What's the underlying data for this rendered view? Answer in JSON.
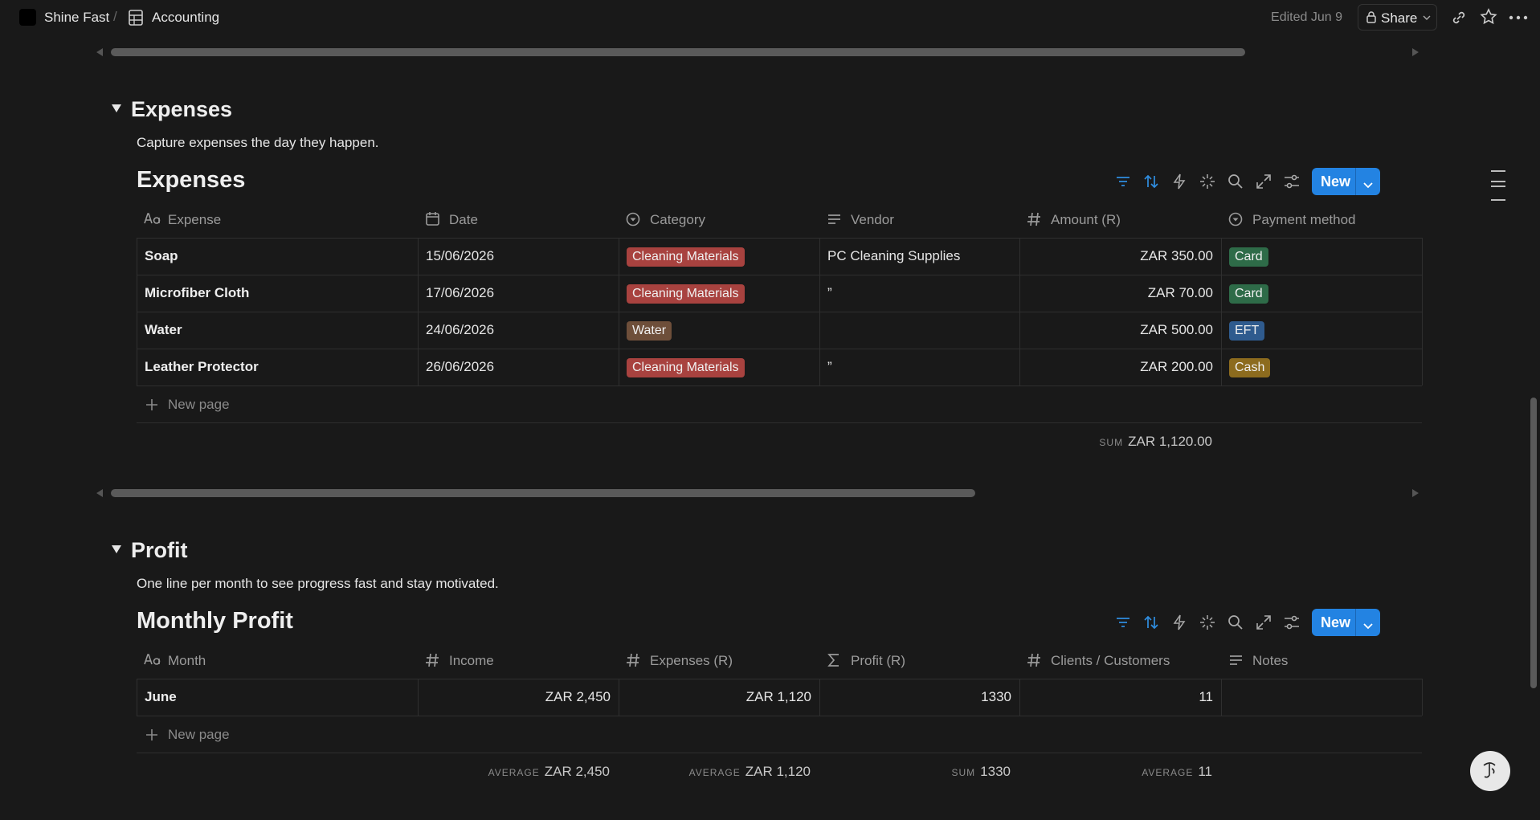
{
  "topbar": {
    "breadcrumb": [
      "Shine Fast",
      "Accounting"
    ],
    "edited": "Edited Jun 9",
    "share": "Share"
  },
  "sections": [
    {
      "heading": "Expenses",
      "description": "Capture expenses the day they happen.",
      "database": {
        "title": "Expenses",
        "new_button": "New",
        "columns": [
          "Expense",
          "Date",
          "Category",
          "Vendor",
          "Amount (R)",
          "Payment method"
        ],
        "rows": [
          [
            "Soap",
            "15/06/2026",
            {
              "text": "Cleaning Materials",
              "color": "#a8423f"
            },
            "PC Cleaning Supplies",
            "ZAR 350.00",
            {
              "text": "Card",
              "color": "#2e6b48"
            }
          ],
          [
            "Microfiber Cloth",
            "17/06/2026",
            {
              "text": "Cleaning Materials",
              "color": "#a8423f"
            },
            "”",
            "ZAR 70.00",
            {
              "text": "Card",
              "color": "#2e6b48"
            }
          ],
          [
            "Water",
            "24/06/2026",
            {
              "text": "Water",
              "color": "#6e4f3a"
            },
            null,
            "ZAR 500.00",
            {
              "text": "EFT",
              "color": "#2f5b8e"
            }
          ],
          [
            "Leather Protector",
            "26/06/2026",
            {
              "text": "Cleaning Materials",
              "color": "#a8423f"
            },
            "”",
            "ZAR 200.00",
            {
              "text": "Cash",
              "color": "#8c6b1e"
            }
          ]
        ],
        "new_page": "New page",
        "footer": [
          null,
          null,
          null,
          null,
          {
            "label": "SUM",
            "value": "ZAR 1,120.00"
          },
          null
        ]
      }
    },
    {
      "heading": "Profit",
      "description": "One line per month to see progress fast and stay motivated.",
      "database": {
        "title": "Monthly Profit",
        "new_button": "New",
        "columns": [
          "Month",
          "Income",
          "Expenses (R)",
          "Profit (R)",
          "Clients / Customers",
          "Notes"
        ],
        "rows": [
          [
            "June",
            "ZAR 2,450",
            "ZAR 1,120",
            "1330",
            "11",
            null
          ]
        ],
        "new_page": "New page",
        "footer": [
          null,
          {
            "label": "AVERAGE",
            "value": "ZAR 2,450"
          },
          {
            "label": "AVERAGE",
            "value": "ZAR 1,120"
          },
          {
            "label": "SUM",
            "value": "1330"
          },
          {
            "label": "AVERAGE",
            "value": "11"
          },
          null
        ]
      }
    }
  ]
}
